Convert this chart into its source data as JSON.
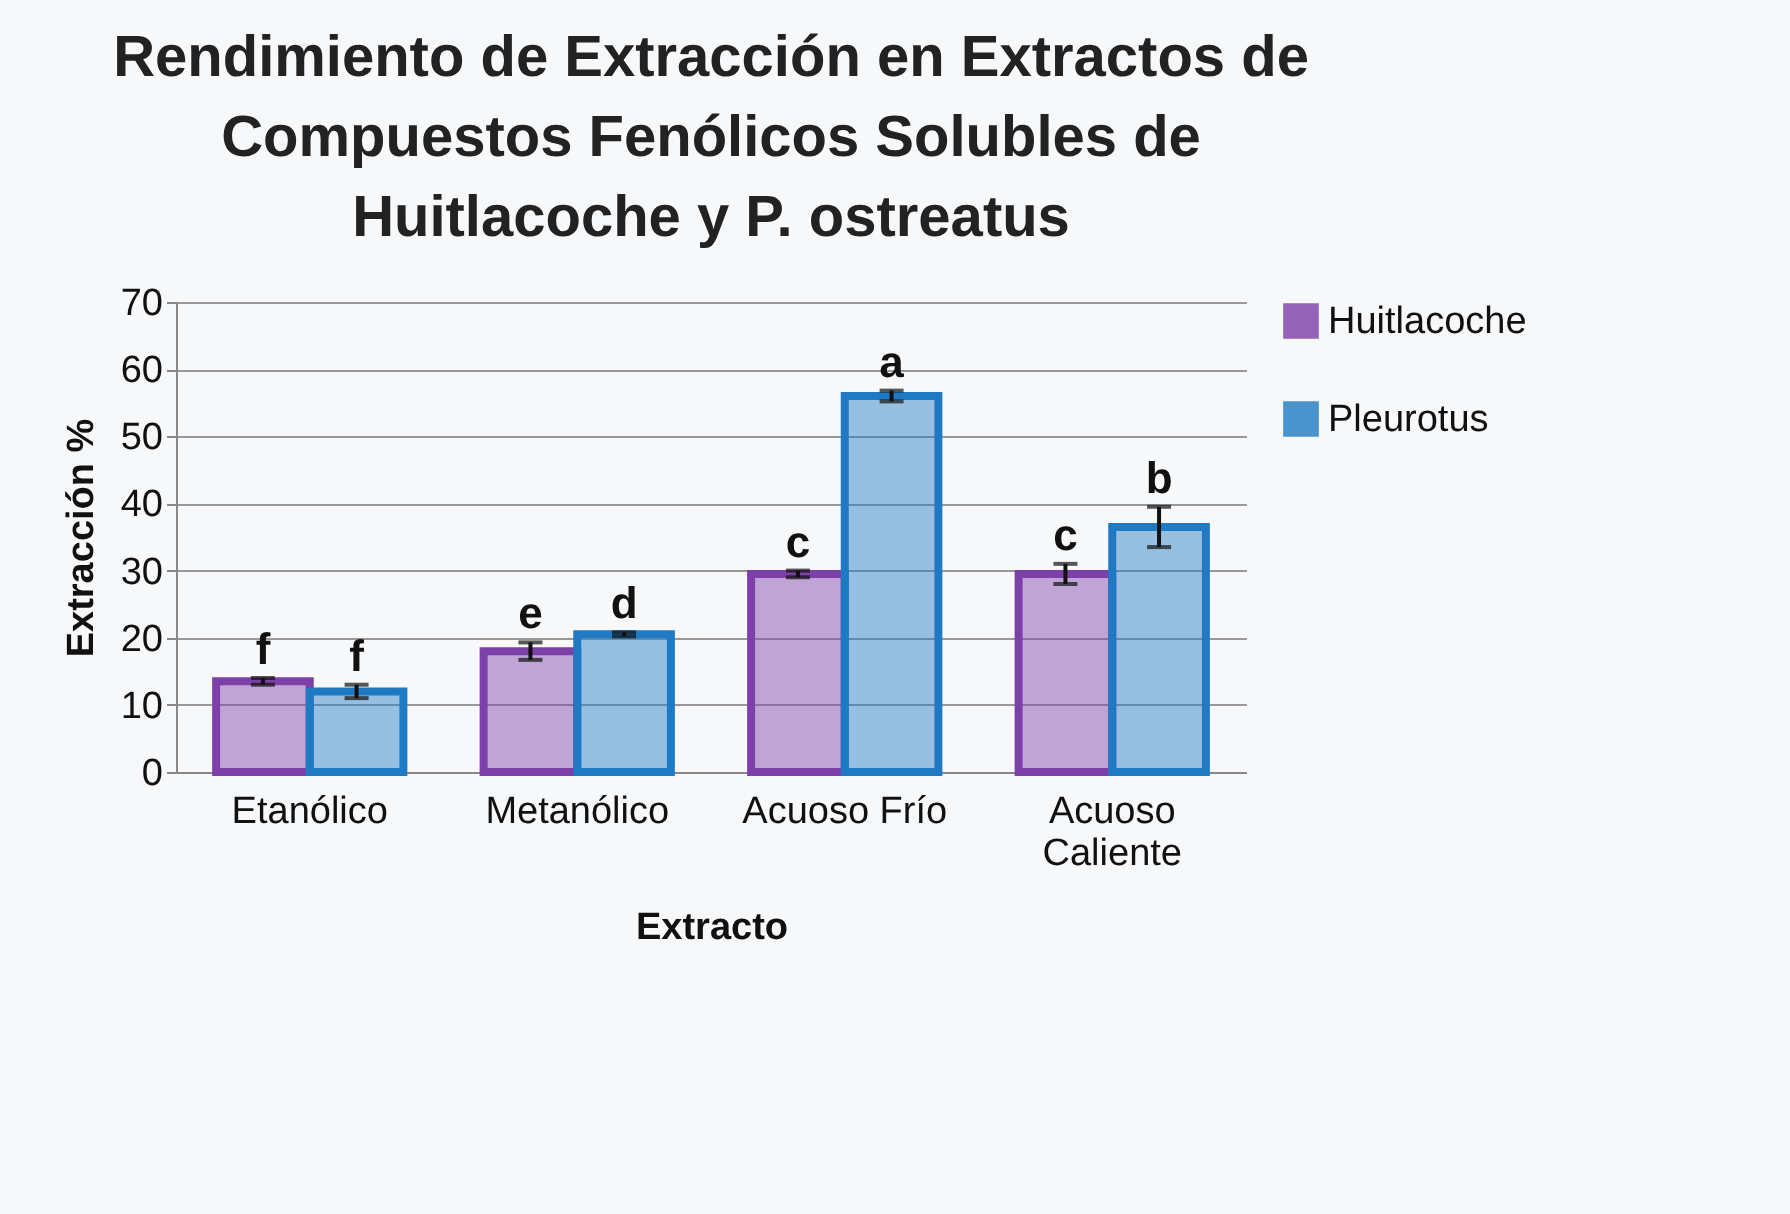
{
  "chart_data": {
    "type": "bar",
    "title": "Rendimiento de Extracción en Extractos de Compuestos Fenólicos Solubles de Huitlacoche y P. ostreatus",
    "xlabel": "Extracto",
    "ylabel": "Extracción %",
    "categories": [
      "Etanólico",
      "Metanólico",
      "Acuoso Frío",
      "Acuoso Caliente"
    ],
    "series": [
      {
        "name": "Huitlacoche",
        "color": "#7d3fa8",
        "values": [
          13.5,
          18,
          29.5,
          29.5
        ],
        "errors": [
          0.5,
          1.3,
          0.5,
          1.5
        ]
      },
      {
        "name": "Pleurotus",
        "color": "#1f7ac3",
        "values": [
          12,
          20.5,
          56,
          36.5
        ],
        "errors": [
          1,
          0.3,
          0.8,
          3
        ]
      }
    ],
    "ylim": [
      0,
      70
    ],
    "yticks": [
      0,
      10,
      20,
      30,
      40,
      50,
      60,
      70
    ],
    "grid": "y",
    "legend": "right",
    "annotations": [
      {
        "text": "f",
        "x": "Etanólico",
        "y": 13.5
      },
      {
        "text": "f",
        "x": "Etanólico",
        "y": 12
      },
      {
        "text": "e",
        "x": "Metanólico",
        "y": 18
      },
      {
        "text": "d",
        "x": "Metanólico",
        "y": 20.5
      },
      {
        "text": "c",
        "x": "Acuoso Frío",
        "y": 29.5
      },
      {
        "text": "a",
        "x": "Acuoso Frío",
        "y": 56
      },
      {
        "text": "c",
        "x": "Acuoso Caliente",
        "y": 29.5
      },
      {
        "text": "b",
        "x": "Acuoso Caliente",
        "y": 36.5
      }
    ]
  }
}
